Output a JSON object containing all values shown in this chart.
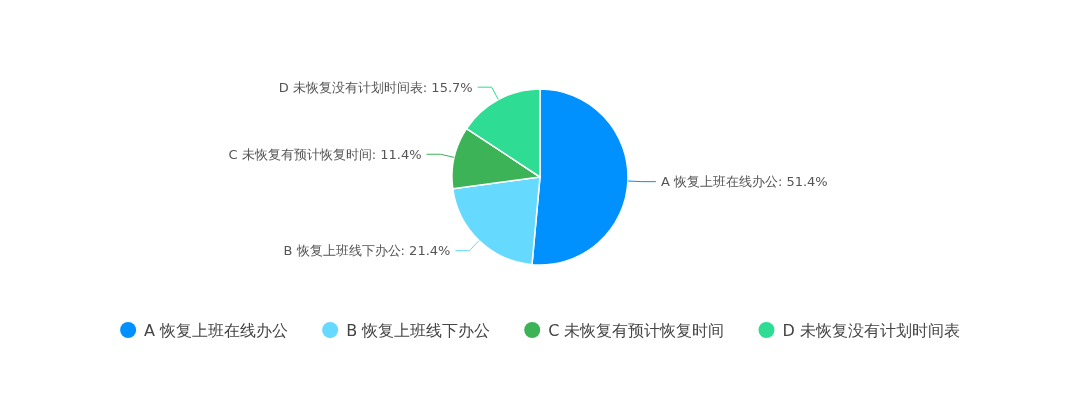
{
  "chart_data": {
    "type": "pie",
    "categories": [
      "A 恢复上班在线办公",
      "B 恢复上班线下办公",
      "C 未恢复有预计恢复时间",
      "D 未恢复没有计划时间表"
    ],
    "values": [
      51.4,
      21.4,
      11.4,
      15.7
    ],
    "value_labels": [
      "A 恢复上班在线办公: 51.4%",
      "B 恢复上班线下办公: 21.4%",
      "C 未恢复有预计恢复时间: 11.4%",
      "D 未恢复没有计划时间表: 15.7%"
    ],
    "colors": [
      "#0091ff",
      "#66d9ff",
      "#3cb356",
      "#2fdc94"
    ],
    "legend": "bottom"
  }
}
